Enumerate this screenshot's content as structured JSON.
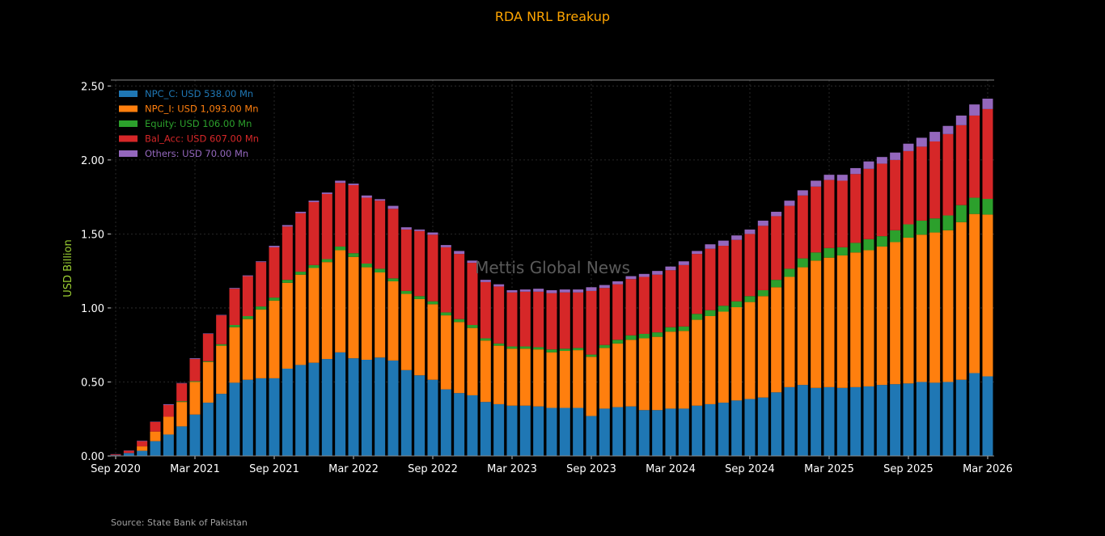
{
  "chart_data": {
    "type": "bar",
    "stacked": true,
    "title": "RDA NRL Breakup",
    "xlabel": "",
    "ylabel": "USD Billion",
    "ylim": [
      0,
      2.54
    ],
    "yticks": [
      "0.00",
      "0.50",
      "1.00",
      "1.50",
      "2.00",
      "2.50"
    ],
    "xtick_labels": [
      "Sep 2020",
      "Mar 2021",
      "Sep 2021",
      "Mar 2022",
      "Sep 2022",
      "Mar 2023",
      "Sep 2023",
      "Mar 2024",
      "Sep 2024",
      "Mar 2025",
      "Sep 2025",
      "Mar 2026"
    ],
    "grid": true,
    "legend_position": "top-left",
    "background": "#000000",
    "categories_start": "Sep 2020",
    "categories_end": "Mar 2026",
    "frequency": "monthly",
    "series": [
      {
        "name": "NPC_C: USD 538.00 Mn",
        "color": "#1f77b4",
        "values": [
          0.005,
          0.02,
          0.035,
          0.1,
          0.145,
          0.2,
          0.28,
          0.36,
          0.42,
          0.495,
          0.515,
          0.525,
          0.525,
          0.59,
          0.615,
          0.63,
          0.655,
          0.7,
          0.66,
          0.65,
          0.665,
          0.645,
          0.58,
          0.545,
          0.515,
          0.45,
          0.425,
          0.41,
          0.365,
          0.35,
          0.34,
          0.34,
          0.335,
          0.325,
          0.325,
          0.325,
          0.27,
          0.32,
          0.33,
          0.335,
          0.31,
          0.31,
          0.32,
          0.32,
          0.34,
          0.35,
          0.36,
          0.375,
          0.385,
          0.395,
          0.43,
          0.465,
          0.48,
          0.46,
          0.465,
          0.46,
          0.465,
          0.47,
          0.48,
          0.485,
          0.49,
          0.5,
          0.495,
          0.5,
          0.515,
          0.56,
          0.538
        ]
      },
      {
        "name": "NPC_I: USD 1,093.00 Mn",
        "color": "#ff7f0e",
        "values": [
          0,
          0,
          0.03,
          0.065,
          0.12,
          0.165,
          0.22,
          0.275,
          0.325,
          0.375,
          0.41,
          0.465,
          0.525,
          0.58,
          0.61,
          0.64,
          0.655,
          0.69,
          0.685,
          0.625,
          0.575,
          0.535,
          0.515,
          0.515,
          0.51,
          0.5,
          0.48,
          0.455,
          0.415,
          0.395,
          0.385,
          0.385,
          0.385,
          0.375,
          0.385,
          0.39,
          0.4,
          0.41,
          0.43,
          0.45,
          0.485,
          0.495,
          0.52,
          0.525,
          0.58,
          0.595,
          0.615,
          0.63,
          0.655,
          0.685,
          0.71,
          0.745,
          0.795,
          0.86,
          0.875,
          0.895,
          0.91,
          0.92,
          0.935,
          0.96,
          0.985,
          0.995,
          1.015,
          1.025,
          1.065,
          1.075,
          1.093
        ]
      },
      {
        "name": "Equity: USD 106.00 Mn",
        "color": "#2ca02c",
        "values": [
          0,
          0,
          0,
          0,
          0,
          0.005,
          0.005,
          0.005,
          0.01,
          0.015,
          0.02,
          0.02,
          0.02,
          0.02,
          0.02,
          0.02,
          0.02,
          0.025,
          0.025,
          0.025,
          0.025,
          0.02,
          0.02,
          0.02,
          0.02,
          0.02,
          0.02,
          0.02,
          0.015,
          0.015,
          0.015,
          0.015,
          0.015,
          0.02,
          0.015,
          0.015,
          0.015,
          0.02,
          0.025,
          0.03,
          0.03,
          0.03,
          0.03,
          0.03,
          0.04,
          0.04,
          0.04,
          0.04,
          0.04,
          0.04,
          0.05,
          0.055,
          0.06,
          0.055,
          0.065,
          0.055,
          0.065,
          0.075,
          0.07,
          0.08,
          0.09,
          0.095,
          0.095,
          0.1,
          0.115,
          0.11,
          0.106
        ]
      },
      {
        "name": "Bal_Acc: USD 607.00 Mn",
        "color": "#d62728",
        "values": [
          0.005,
          0.015,
          0.035,
          0.065,
          0.08,
          0.12,
          0.15,
          0.185,
          0.195,
          0.245,
          0.27,
          0.3,
          0.34,
          0.36,
          0.395,
          0.425,
          0.44,
          0.43,
          0.46,
          0.445,
          0.46,
          0.47,
          0.415,
          0.44,
          0.45,
          0.44,
          0.44,
          0.42,
          0.38,
          0.385,
          0.365,
          0.37,
          0.375,
          0.38,
          0.38,
          0.375,
          0.43,
          0.385,
          0.375,
          0.38,
          0.385,
          0.39,
          0.385,
          0.415,
          0.405,
          0.415,
          0.405,
          0.415,
          0.42,
          0.435,
          0.43,
          0.425,
          0.425,
          0.445,
          0.46,
          0.45,
          0.465,
          0.475,
          0.49,
          0.475,
          0.495,
          0.5,
          0.52,
          0.55,
          0.54,
          0.555,
          0.607
        ]
      },
      {
        "name": "Others: USD 70.00 Mn",
        "color": "#9467bd",
        "values": [
          0.002,
          0.002,
          0.003,
          0.002,
          0.005,
          0.003,
          0.005,
          0.003,
          0.003,
          0.005,
          0.005,
          0.005,
          0.01,
          0.01,
          0.01,
          0.01,
          0.01,
          0.015,
          0.01,
          0.015,
          0.01,
          0.02,
          0.015,
          0.01,
          0.015,
          0.015,
          0.02,
          0.015,
          0.015,
          0.015,
          0.015,
          0.015,
          0.02,
          0.02,
          0.02,
          0.02,
          0.025,
          0.02,
          0.02,
          0.02,
          0.02,
          0.025,
          0.025,
          0.025,
          0.02,
          0.03,
          0.035,
          0.03,
          0.03,
          0.035,
          0.03,
          0.035,
          0.035,
          0.04,
          0.035,
          0.04,
          0.04,
          0.05,
          0.045,
          0.05,
          0.05,
          0.06,
          0.065,
          0.055,
          0.065,
          0.075,
          0.07
        ]
      }
    ],
    "watermark": "Mettis Global News",
    "source": "Source: State Bank of Pakistan"
  }
}
